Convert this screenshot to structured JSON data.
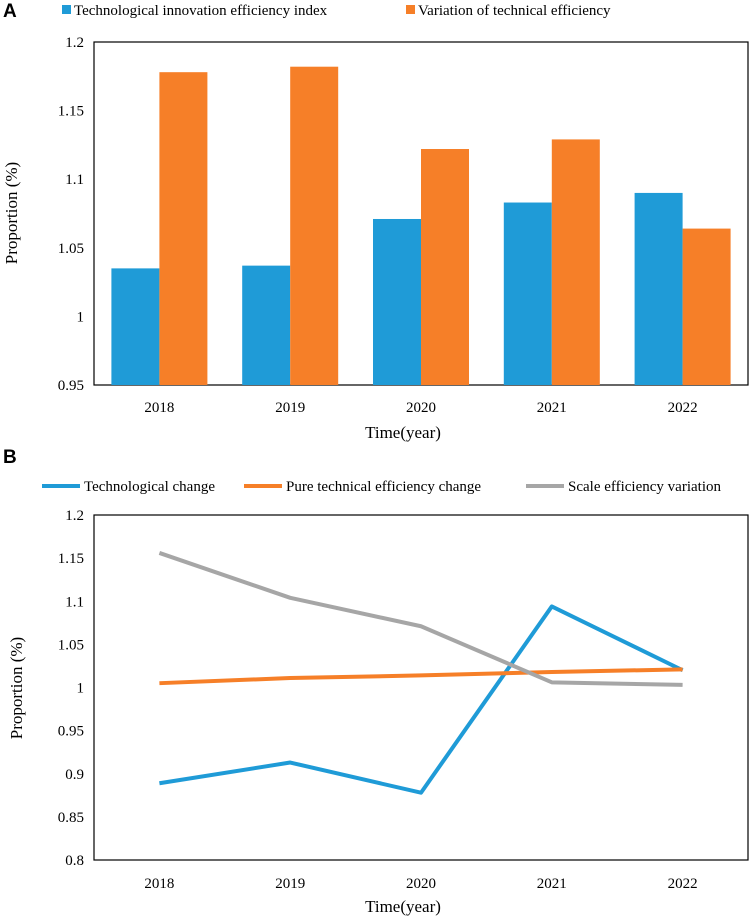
{
  "chart_data": [
    {
      "panel": "A",
      "type": "bar",
      "title": "",
      "xlabel": "Time(year)",
      "ylabel": "Proportion (%)",
      "categories": [
        "2018",
        "2019",
        "2020",
        "2021",
        "2022"
      ],
      "ylim": [
        0.95,
        1.2
      ],
      "yticks": [
        0.95,
        1,
        1.05,
        1.1,
        1.15,
        1.2
      ],
      "ytick_labels": [
        "0.95",
        "1",
        "1.05",
        "1.1",
        "1.15",
        "1.2"
      ],
      "legend_position": "top",
      "grid": false,
      "series": [
        {
          "name": "Technological innovation efficiency index",
          "color": "#1f9bd7",
          "values": [
            1.035,
            1.037,
            1.071,
            1.083,
            1.09
          ]
        },
        {
          "name": "Variation of technical efficiency",
          "color": "#f67f28",
          "values": [
            1.178,
            1.182,
            1.122,
            1.129,
            1.064
          ]
        }
      ]
    },
    {
      "panel": "B",
      "type": "line",
      "title": "",
      "xlabel": "Time(year)",
      "ylabel": "Proportion (%)",
      "categories": [
        "2018",
        "2019",
        "2020",
        "2021",
        "2022"
      ],
      "ylim": [
        0.8,
        1.2
      ],
      "yticks": [
        0.8,
        0.85,
        0.9,
        0.95,
        1,
        1.05,
        1.1,
        1.15,
        1.2
      ],
      "ytick_labels": [
        "0.8",
        "0.85",
        "0.9",
        "0.95",
        "1",
        "1.05",
        "1.1",
        "1.15",
        "1.2"
      ],
      "legend_position": "top",
      "grid": false,
      "series": [
        {
          "name": "Technological change",
          "color": "#1f9bd7",
          "values": [
            0.889,
            0.913,
            0.878,
            1.094,
            1.02
          ]
        },
        {
          "name": "Pure technical efficiency change",
          "color": "#f67f28",
          "values": [
            1.005,
            1.011,
            1.014,
            1.018,
            1.021
          ]
        },
        {
          "name": "Scale efficiency variation",
          "color": "#a6a6a6",
          "values": [
            1.156,
            1.104,
            1.071,
            1.006,
            1.003
          ]
        }
      ]
    }
  ]
}
